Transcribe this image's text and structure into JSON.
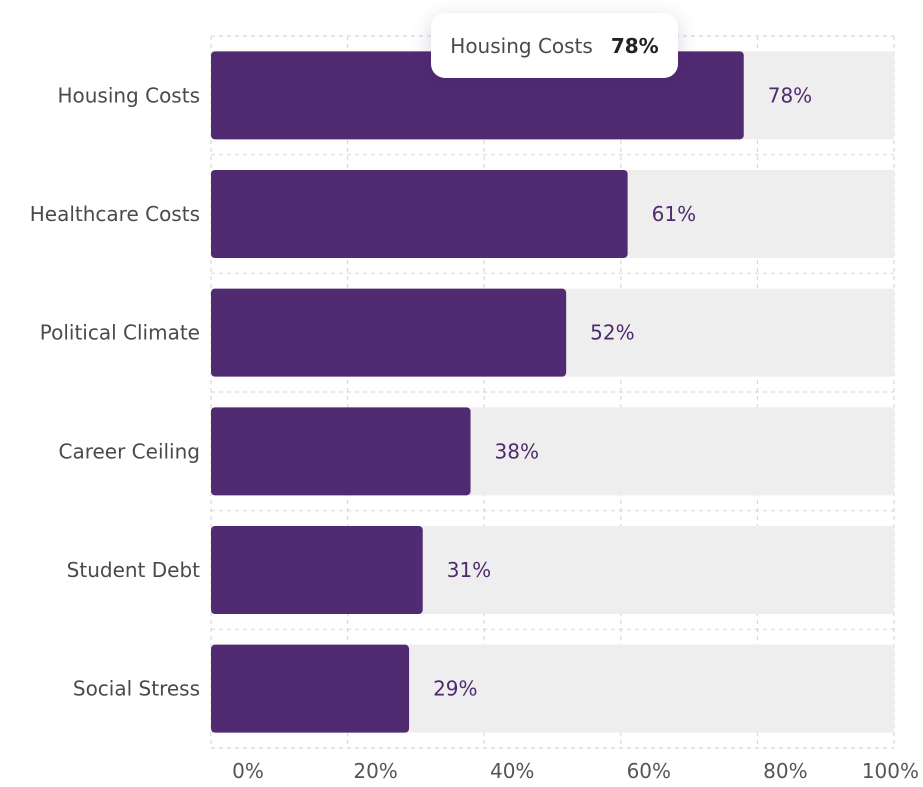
{
  "chart_data": {
    "type": "bar",
    "orientation": "horizontal",
    "categories": [
      "Housing Costs",
      "Healthcare Costs",
      "Political Climate",
      "Career Ceiling",
      "Student Debt",
      "Social Stress"
    ],
    "values": [
      78,
      61,
      52,
      38,
      31,
      29
    ],
    "value_labels": [
      "78%",
      "61%",
      "52%",
      "38%",
      "31%",
      "29%"
    ],
    "x_ticks": [
      "0%",
      "20%",
      "40%",
      "60%",
      "80%",
      "100%"
    ],
    "xlim": [
      0,
      100
    ],
    "grid": true,
    "colors": {
      "bar": "#512b72",
      "track": "#eeeeee",
      "value_text": "#4f2a70",
      "grid": "#d9d9d9"
    }
  },
  "tooltip": {
    "label": "Housing Costs",
    "value": "78%"
  }
}
